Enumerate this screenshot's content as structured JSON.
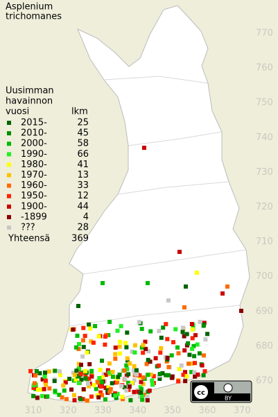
{
  "title": [
    "Asplenium",
    "trichomanes"
  ],
  "legend": {
    "heading": [
      "Uusimman",
      "havainnon",
      "vuosi"
    ],
    "count_heading": "lkm",
    "rows": [
      {
        "label": "2015-",
        "count": 25,
        "color": "#006400"
      },
      {
        "label": "2010-",
        "count": 45,
        "color": "#008c00"
      },
      {
        "label": "2000-",
        "count": 58,
        "color": "#00bb00"
      },
      {
        "label": "1990-",
        "count": 66,
        "color": "#22ee22"
      },
      {
        "label": "1980-",
        "count": 41,
        "color": "#ffff00"
      },
      {
        "label": "1970-",
        "count": 13,
        "color": "#ffc000"
      },
      {
        "label": "1960-",
        "count": 33,
        "color": "#ff6a00"
      },
      {
        "label": "1950-",
        "count": 12,
        "color": "#ff2200"
      },
      {
        "label": "1900-",
        "count": 44,
        "color": "#cc0000"
      },
      {
        "label": "-1899",
        "count": 4,
        "color": "#880000"
      },
      {
        "label": "???",
        "count": 28,
        "color": "#c8c8c8"
      }
    ],
    "total_label": "Yhteensä",
    "total": 369
  },
  "grid": {
    "y_labels": [
      770,
      760,
      750,
      740,
      730,
      720,
      710,
      700,
      690,
      680,
      670
    ],
    "x_labels": [
      310,
      320,
      330,
      340,
      350,
      360,
      370
    ]
  },
  "license": {
    "icon": "cc",
    "by": "BY"
  }
}
